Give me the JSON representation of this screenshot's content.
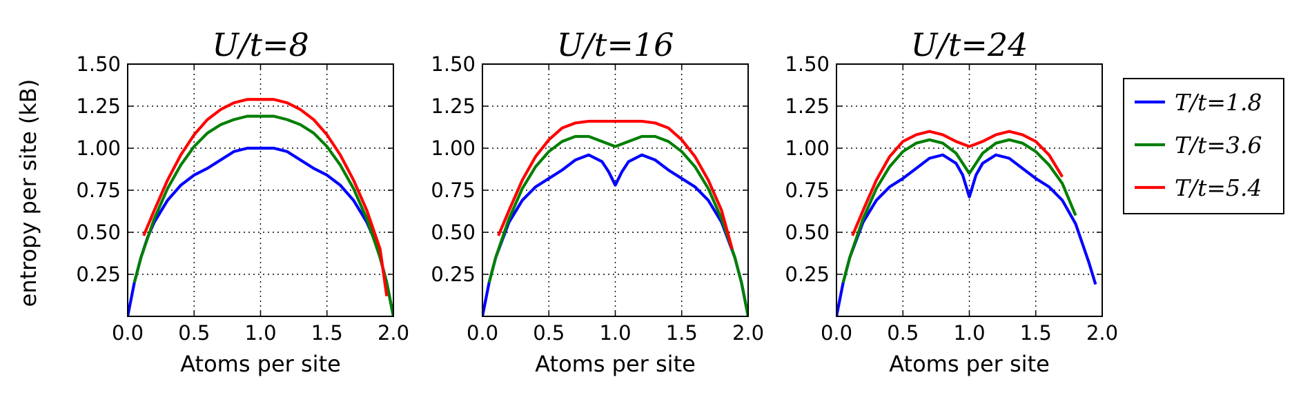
{
  "figure": {
    "ylabel": "entropy per site (kB)"
  },
  "chart_data": [
    {
      "type": "line",
      "title": "U/t=8",
      "xlabel": "Atoms per site",
      "ylabel": "entropy per site (kB)",
      "xlim": [
        0.0,
        2.0
      ],
      "ylim": [
        0.0,
        1.5
      ],
      "xticks": [
        "0.0",
        "0.5",
        "1.0",
        "1.5",
        "2.0"
      ],
      "yticks": [
        "0.25",
        "0.50",
        "0.75",
        "1.00",
        "1.25",
        "1.50"
      ],
      "grid": true,
      "series": [
        {
          "name": "T/t=1.8",
          "color": "#0000ff",
          "x": [
            0.0,
            0.05,
            0.1,
            0.15,
            0.2,
            0.3,
            0.4,
            0.5,
            0.6,
            0.7,
            0.8,
            0.9,
            1.0,
            1.1,
            1.2,
            1.3,
            1.4,
            1.5,
            1.6,
            1.7,
            1.8,
            1.85,
            1.9,
            1.95,
            2.0
          ],
          "y": [
            0.0,
            0.2,
            0.35,
            0.47,
            0.56,
            0.69,
            0.78,
            0.84,
            0.88,
            0.93,
            0.98,
            1.0,
            1.0,
            1.0,
            0.98,
            0.93,
            0.88,
            0.84,
            0.78,
            0.69,
            0.56,
            0.47,
            0.35,
            0.2,
            0.0
          ]
        },
        {
          "name": "T/t=3.6",
          "color": "#007f00",
          "x": [
            0.05,
            0.1,
            0.2,
            0.3,
            0.4,
            0.5,
            0.6,
            0.7,
            0.8,
            0.9,
            1.0,
            1.1,
            1.2,
            1.3,
            1.4,
            1.5,
            1.6,
            1.7,
            1.8,
            1.9,
            1.95,
            2.0
          ],
          "y": [
            0.2,
            0.35,
            0.58,
            0.76,
            0.9,
            1.01,
            1.09,
            1.14,
            1.17,
            1.19,
            1.19,
            1.19,
            1.17,
            1.14,
            1.09,
            1.01,
            0.9,
            0.76,
            0.58,
            0.35,
            0.2,
            0.0
          ]
        },
        {
          "name": "T/t=5.4",
          "color": "#ff0000",
          "x": [
            0.12,
            0.2,
            0.3,
            0.4,
            0.5,
            0.6,
            0.7,
            0.8,
            0.9,
            1.0,
            1.1,
            1.2,
            1.3,
            1.4,
            1.5,
            1.6,
            1.7,
            1.8,
            1.9,
            1.95
          ],
          "y": [
            0.48,
            0.63,
            0.81,
            0.96,
            1.08,
            1.17,
            1.23,
            1.27,
            1.29,
            1.29,
            1.29,
            1.27,
            1.23,
            1.17,
            1.08,
            0.96,
            0.81,
            0.63,
            0.4,
            0.12
          ]
        }
      ]
    },
    {
      "type": "line",
      "title": "U/t=16",
      "xlabel": "Atoms per site",
      "ylabel": "",
      "xlim": [
        0.0,
        2.0
      ],
      "ylim": [
        0.0,
        1.5
      ],
      "xticks": [
        "0.0",
        "0.5",
        "1.0",
        "1.5",
        "2.0"
      ],
      "yticks": [
        "0.25",
        "0.50",
        "0.75",
        "1.00",
        "1.25",
        "1.50"
      ],
      "grid": true,
      "series": [
        {
          "name": "T/t=1.8",
          "color": "#0000ff",
          "x": [
            0.0,
            0.05,
            0.1,
            0.2,
            0.3,
            0.4,
            0.5,
            0.6,
            0.7,
            0.8,
            0.9,
            0.95,
            1.0,
            1.05,
            1.1,
            1.2,
            1.3,
            1.4,
            1.5,
            1.6,
            1.7,
            1.8,
            1.9,
            1.95,
            2.0
          ],
          "y": [
            0.0,
            0.2,
            0.35,
            0.56,
            0.69,
            0.77,
            0.82,
            0.87,
            0.93,
            0.96,
            0.92,
            0.86,
            0.78,
            0.86,
            0.92,
            0.96,
            0.93,
            0.87,
            0.82,
            0.77,
            0.69,
            0.56,
            0.35,
            0.2,
            0.0
          ]
        },
        {
          "name": "T/t=3.6",
          "color": "#007f00",
          "x": [
            0.05,
            0.1,
            0.2,
            0.3,
            0.4,
            0.5,
            0.6,
            0.7,
            0.8,
            0.9,
            1.0,
            1.1,
            1.2,
            1.3,
            1.4,
            1.5,
            1.6,
            1.7,
            1.8,
            1.9,
            1.95,
            2.0
          ],
          "y": [
            0.2,
            0.35,
            0.58,
            0.76,
            0.89,
            0.98,
            1.04,
            1.07,
            1.07,
            1.04,
            1.01,
            1.04,
            1.07,
            1.07,
            1.04,
            0.98,
            0.89,
            0.76,
            0.58,
            0.35,
            0.2,
            0.0
          ]
        },
        {
          "name": "T/t=5.4",
          "color": "#ff0000",
          "x": [
            0.12,
            0.2,
            0.3,
            0.4,
            0.5,
            0.6,
            0.7,
            0.8,
            0.9,
            1.0,
            1.1,
            1.2,
            1.3,
            1.4,
            1.5,
            1.6,
            1.7,
            1.8,
            1.88
          ],
          "y": [
            0.48,
            0.63,
            0.81,
            0.95,
            1.05,
            1.12,
            1.15,
            1.16,
            1.16,
            1.16,
            1.16,
            1.16,
            1.15,
            1.12,
            1.05,
            0.95,
            0.81,
            0.63,
            0.4
          ]
        }
      ]
    },
    {
      "type": "line",
      "title": "U/t=24",
      "xlabel": "Atoms per site",
      "ylabel": "",
      "xlim": [
        0.0,
        2.0
      ],
      "ylim": [
        0.0,
        1.5
      ],
      "xticks": [
        "0.0",
        "0.5",
        "1.0",
        "1.5",
        "2.0"
      ],
      "yticks": [
        "0.25",
        "0.50",
        "0.75",
        "1.00",
        "1.25",
        "1.50"
      ],
      "grid": true,
      "series": [
        {
          "name": "T/t=1.8",
          "color": "#0000ff",
          "x": [
            0.0,
            0.05,
            0.1,
            0.2,
            0.3,
            0.4,
            0.5,
            0.6,
            0.7,
            0.8,
            0.9,
            0.95,
            1.0,
            1.05,
            1.1,
            1.2,
            1.3,
            1.4,
            1.5,
            1.6,
            1.7,
            1.8,
            1.9,
            1.95
          ],
          "y": [
            0.0,
            0.2,
            0.35,
            0.56,
            0.69,
            0.77,
            0.82,
            0.88,
            0.94,
            0.96,
            0.91,
            0.84,
            0.71,
            0.84,
            0.91,
            0.96,
            0.94,
            0.88,
            0.82,
            0.77,
            0.69,
            0.55,
            0.32,
            0.19
          ]
        },
        {
          "name": "T/t=3.6",
          "color": "#007f00",
          "x": [
            0.05,
            0.1,
            0.2,
            0.3,
            0.4,
            0.5,
            0.6,
            0.7,
            0.8,
            0.9,
            0.95,
            1.0,
            1.05,
            1.1,
            1.2,
            1.3,
            1.4,
            1.5,
            1.6,
            1.7,
            1.8
          ],
          "y": [
            0.2,
            0.35,
            0.58,
            0.76,
            0.89,
            0.98,
            1.03,
            1.05,
            1.03,
            0.97,
            0.91,
            0.85,
            0.91,
            0.97,
            1.03,
            1.05,
            1.03,
            0.98,
            0.9,
            0.79,
            0.6
          ]
        },
        {
          "name": "T/t=5.4",
          "color": "#ff0000",
          "x": [
            0.12,
            0.2,
            0.3,
            0.4,
            0.5,
            0.6,
            0.7,
            0.8,
            0.9,
            1.0,
            1.1,
            1.2,
            1.3,
            1.4,
            1.5,
            1.6,
            1.7
          ],
          "y": [
            0.48,
            0.63,
            0.81,
            0.95,
            1.04,
            1.08,
            1.1,
            1.08,
            1.04,
            1.01,
            1.04,
            1.08,
            1.1,
            1.08,
            1.04,
            0.96,
            0.83
          ]
        }
      ]
    }
  ],
  "legend": {
    "placement": "right",
    "entries": [
      {
        "label": "T/t=1.8",
        "color": "#0000ff"
      },
      {
        "label": "T/t=3.6",
        "color": "#007f00"
      },
      {
        "label": "T/t=5.4",
        "color": "#ff0000"
      }
    ]
  }
}
